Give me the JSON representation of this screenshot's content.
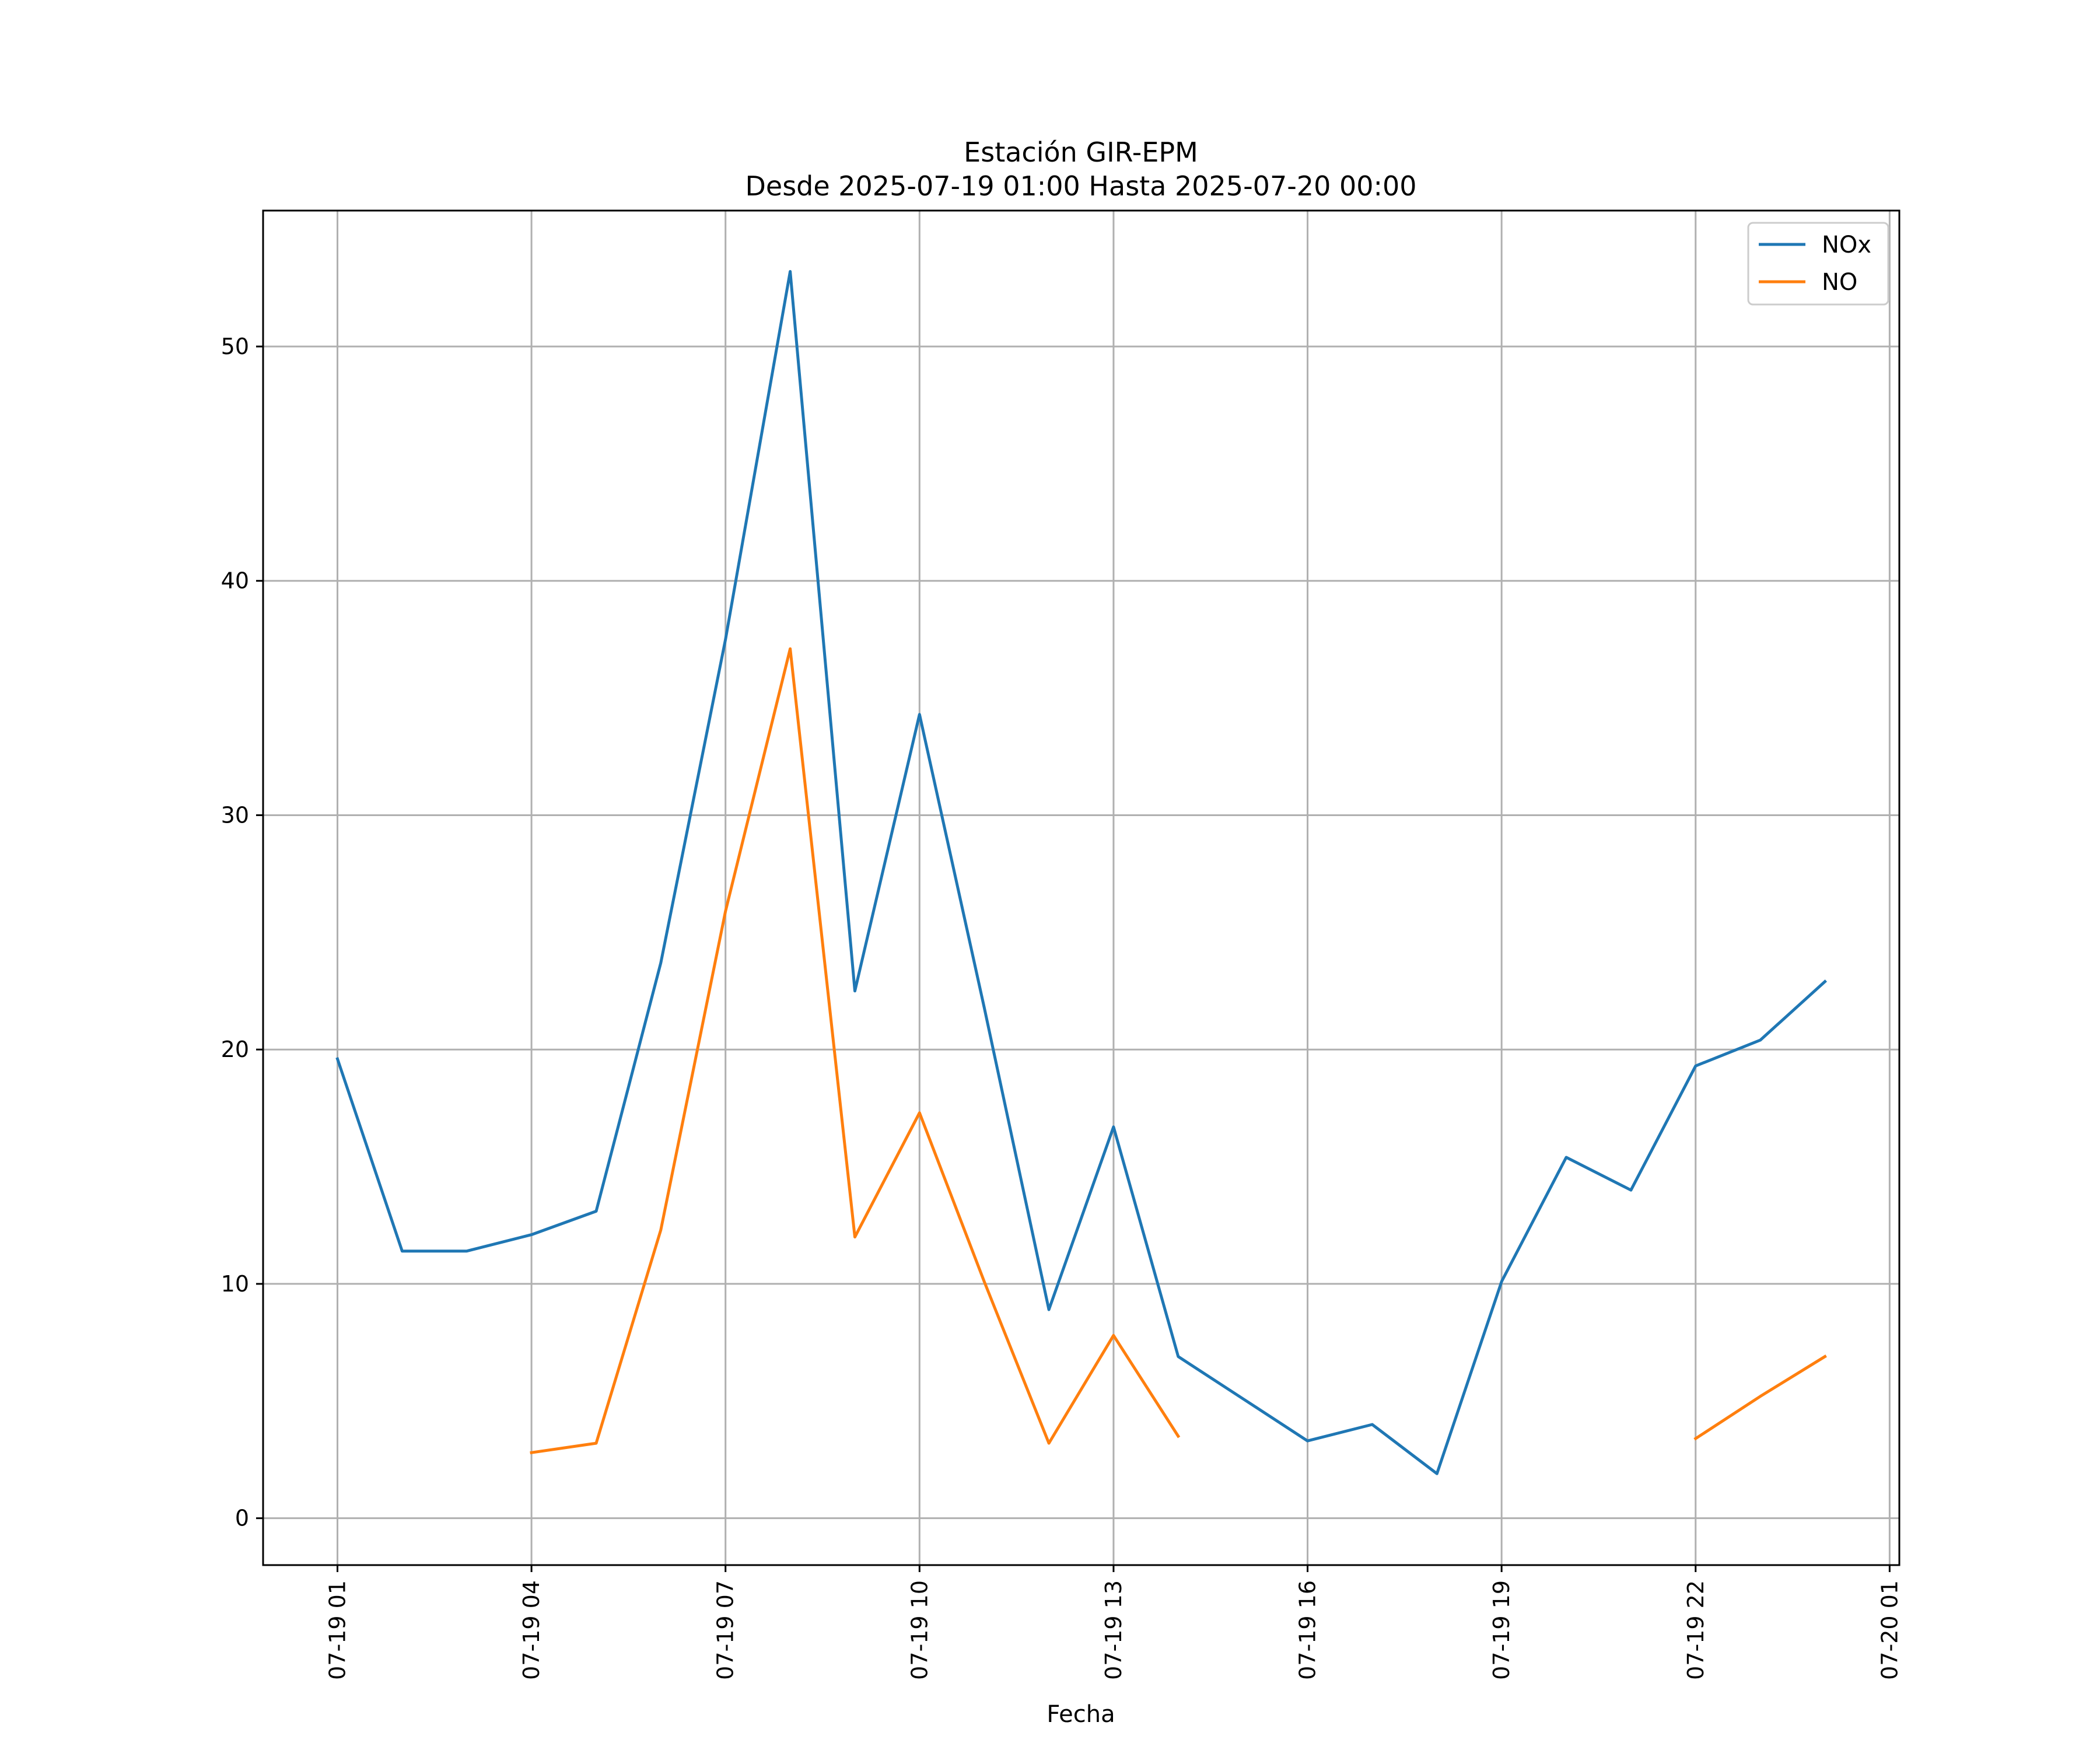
{
  "chart_data": {
    "type": "line",
    "title": "Estación GIR-EPM",
    "subtitle": "Desde 2025-07-19 01:00 Hasta 2025-07-20 00:00",
    "xlabel": "Fecha",
    "ylabel": "",
    "x": [
      "2025-07-19 01:00",
      "2025-07-19 02:00",
      "2025-07-19 03:00",
      "2025-07-19 04:00",
      "2025-07-19 05:00",
      "2025-07-19 06:00",
      "2025-07-19 07:00",
      "2025-07-19 08:00",
      "2025-07-19 09:00",
      "2025-07-19 10:00",
      "2025-07-19 11:00",
      "2025-07-19 12:00",
      "2025-07-19 13:00",
      "2025-07-19 14:00",
      "2025-07-19 15:00",
      "2025-07-19 16:00",
      "2025-07-19 17:00",
      "2025-07-19 18:00",
      "2025-07-19 19:00",
      "2025-07-19 20:00",
      "2025-07-19 21:00",
      "2025-07-19 22:00",
      "2025-07-19 23:00",
      "2025-07-20 00:00"
    ],
    "series": [
      {
        "name": "NOx",
        "color": "#1f77b4",
        "values": [
          19.6,
          11.4,
          11.4,
          12.1,
          13.1,
          23.7,
          37.5,
          53.2,
          22.5,
          34.3,
          21.8,
          8.9,
          16.7,
          6.9,
          5.1,
          3.3,
          4.0,
          1.9,
          10.1,
          15.4,
          14.0,
          19.3,
          20.4,
          22.9
        ]
      },
      {
        "name": "NO",
        "color": "#ff7f0e",
        "values": [
          null,
          null,
          null,
          2.8,
          3.2,
          12.3,
          25.9,
          37.1,
          12.0,
          17.3,
          10.1,
          3.2,
          7.8,
          3.5,
          null,
          null,
          null,
          null,
          null,
          null,
          null,
          3.4,
          5.2,
          6.9
        ]
      }
    ],
    "xticks": [
      "07-19 01",
      "07-19 04",
      "07-19 07",
      "07-19 10",
      "07-19 13",
      "07-19 16",
      "07-19 19",
      "07-19 22",
      "07-20 01"
    ],
    "yticks": [
      0,
      10,
      20,
      30,
      40,
      50
    ],
    "xlim": [
      "2025-07-18 23:51",
      "2025-07-20 01:09"
    ],
    "ylim": [
      -2.0,
      55.8
    ],
    "grid": true,
    "legend_position": "top-right"
  }
}
